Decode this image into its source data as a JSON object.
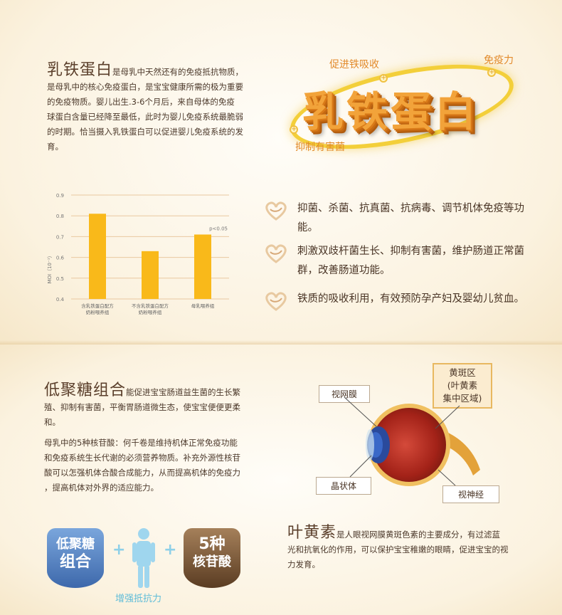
{
  "section1": {
    "title": "乳铁蛋白",
    "para_lines": [
      "是母乳中天然还有的免疫抵抗物质，",
      "是母乳中的核心免疫蛋白，是宝宝健康所需的极为重要",
      "的免疫物质。婴儿出生.3-6个月后，来自母体的免疫",
      "球蛋白含量已经降至最低，此时为婴儿免疫系统最脆弱",
      "的时期。恰当摄入乳铁蛋白可以促进婴儿免疫系统的发",
      "育。"
    ],
    "logo": {
      "text": "乳铁蛋白",
      "label_top": "促进铁吸收",
      "label_right": "免疫力",
      "label_bottom": "抑制有害菌",
      "dot_symbol": "+"
    },
    "features": [
      "抑菌、杀菌、抗真菌、抗病毒、调节机体免疫等功能。",
      "刺激双歧杆菌生长、抑制有害菌，维护肠道正常菌群，改善肠道功能。",
      "铁质的吸收利用，有效预防孕产妇及婴幼儿贫血。"
    ]
  },
  "chart_data": {
    "type": "bar",
    "categories": [
      "含乳铁蛋白配方奶粉喂养组",
      "不含乳铁蛋白配方奶粉喂养组",
      "母乳喂养组"
    ],
    "category_lines": [
      [
        "含乳铁蛋白配方",
        "奶粉喂养组"
      ],
      [
        "不含乳铁蛋白配方",
        "奶粉喂养组"
      ],
      [
        "母乳喂养组"
      ]
    ],
    "values": [
      0.81,
      0.63,
      0.71
    ],
    "yticks": [
      "0.4",
      "0.5",
      "0.6",
      "0.7",
      "0.8",
      "0.9"
    ],
    "ylim": [
      0.4,
      0.9
    ],
    "ylabel": "MOI（10⁻¹）",
    "annotation": "p<0.05",
    "bar_color": "#f9b91a",
    "grid": true
  },
  "section2": {
    "title": "低聚糖组合",
    "para1_lines": [
      "能促进宝宝肠道益生菌的生长繁",
      "殖、抑制有害菌，平衡胃肠道微生态，使宝宝便便更柔",
      "和。"
    ],
    "para2_lines": [
      "母乳中的5种核苷酸：何千卷是维持机体正常免疫功能",
      "和免疫系统生长代谢的必须营养物质。补充外源性核苷",
      "酸可以怎强机体合酸合成能力，从而提高机体的免疫力",
      "，提高机体对外界的适应能力。"
    ],
    "badge1": {
      "line1": "低聚糖",
      "line2": "组合",
      "color": "#5a86c4"
    },
    "badge2": {
      "line1": "5种",
      "line2": "核苷酸",
      "color": "#7a5a3a"
    },
    "plus": "+",
    "caption": "增强抵抗力",
    "eye_labels": {
      "retina": "视网膜",
      "lens": "晶状体",
      "optic_nerve": "视神经",
      "macula_lines": [
        "黄斑区",
        "(叶黄素",
        "集中区域)"
      ]
    },
    "lutein_title": "叶黄素",
    "lutein_lines": [
      "是人眼视网膜黄斑色素的主要成分，有过滤蓝",
      "光和抗氧化的作用，可以保护宝宝稚嫩的眼睛，促进宝宝的视",
      "力发育。"
    ]
  }
}
